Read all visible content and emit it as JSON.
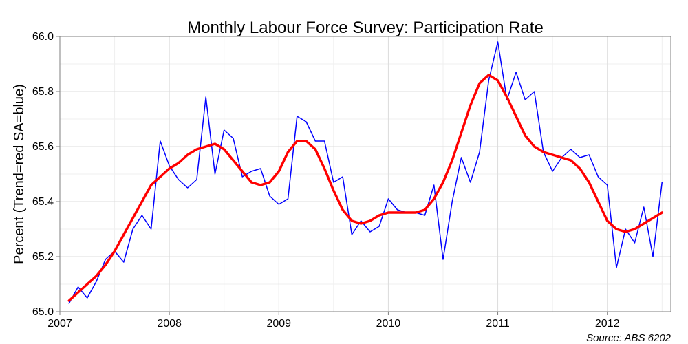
{
  "chart_data": {
    "type": "line",
    "title": "Monthly Labour Force Survey: Participation Rate",
    "xlabel": "",
    "ylabel": "Percent (Trend=red SA=blue)",
    "caption": "Source: ABS 6202",
    "xlim": [
      2007.0,
      2012.58
    ],
    "ylim": [
      65.0,
      66.0
    ],
    "x_ticks": [
      "2007",
      "2008",
      "2009",
      "2010",
      "2011",
      "2012"
    ],
    "y_ticks": [
      "65.0",
      "65.2",
      "65.4",
      "65.6",
      "65.8",
      "66.0"
    ],
    "grid": true,
    "legend": "none",
    "x_start": "2007-02",
    "series": [
      {
        "id": "sa",
        "color": "#0000ff",
        "values": [
          65.03,
          65.09,
          65.05,
          65.11,
          65.19,
          65.22,
          65.18,
          65.3,
          65.35,
          65.3,
          65.62,
          65.53,
          65.48,
          65.45,
          65.48,
          65.78,
          65.5,
          65.66,
          65.63,
          65.49,
          65.51,
          65.52,
          65.42,
          65.39,
          65.41,
          65.71,
          65.69,
          65.62,
          65.62,
          65.47,
          65.49,
          65.28,
          65.33,
          65.29,
          65.31,
          65.41,
          65.37,
          65.36,
          65.36,
          65.35,
          65.46,
          65.19,
          65.4,
          65.56,
          65.47,
          65.58,
          65.84,
          65.98,
          65.77,
          65.87,
          65.77,
          65.8,
          65.58,
          65.51,
          65.56,
          65.59,
          65.56,
          65.57,
          65.49,
          65.46,
          65.16,
          65.3,
          65.25,
          65.38,
          65.2,
          65.47
        ]
      },
      {
        "id": "trend",
        "color": "#ff0000",
        "values": [
          65.04,
          65.07,
          65.1,
          65.13,
          65.17,
          65.22,
          65.28,
          65.34,
          65.4,
          65.46,
          65.49,
          65.52,
          65.54,
          65.57,
          65.59,
          65.6,
          65.61,
          65.59,
          65.55,
          65.51,
          65.47,
          65.46,
          65.47,
          65.51,
          65.58,
          65.62,
          65.62,
          65.59,
          65.52,
          65.44,
          65.37,
          65.33,
          65.32,
          65.33,
          65.35,
          65.36,
          65.36,
          65.36,
          65.36,
          65.37,
          65.41,
          65.47,
          65.55,
          65.65,
          65.75,
          65.83,
          65.86,
          65.84,
          65.78,
          65.71,
          65.64,
          65.6,
          65.58,
          65.57,
          65.56,
          65.55,
          65.52,
          65.47,
          65.4,
          65.33,
          65.3,
          65.29,
          65.3,
          65.32,
          65.34,
          65.36
        ]
      }
    ]
  }
}
